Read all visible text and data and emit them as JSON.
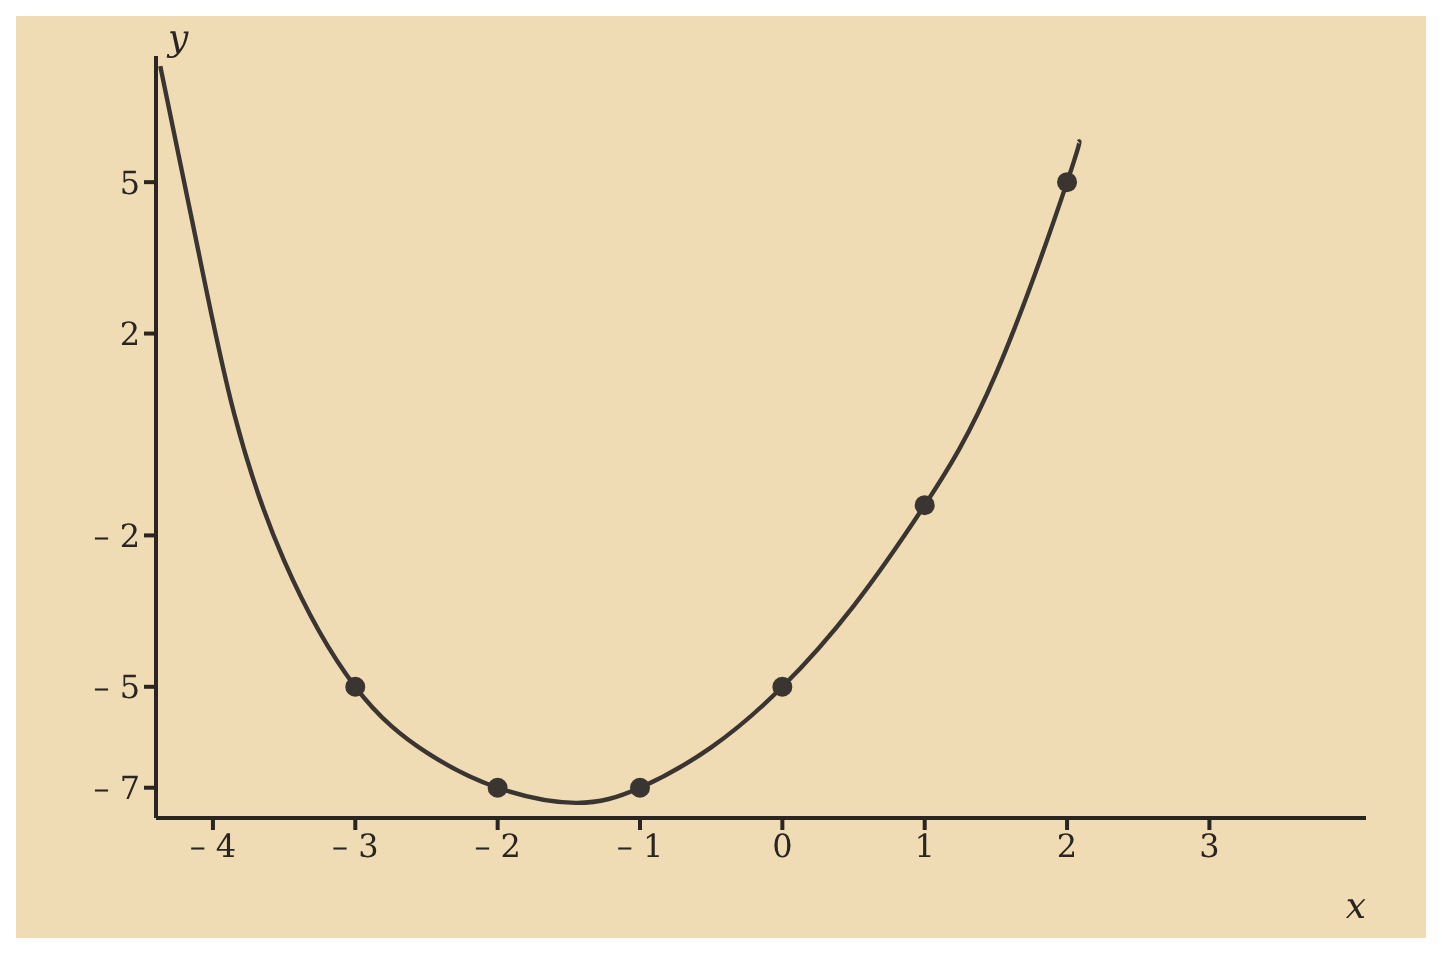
{
  "chart_data": {
    "type": "line",
    "xlabel": "x",
    "ylabel": "y",
    "xlim": [
      -4.4,
      4.1
    ],
    "ylim": [
      -7.6,
      7.5
    ],
    "xticks": [
      {
        "value": -4,
        "label": "– 4"
      },
      {
        "value": -3,
        "label": "– 3"
      },
      {
        "value": -2,
        "label": "– 2"
      },
      {
        "value": -1,
        "label": "– 1"
      },
      0,
      1,
      2,
      3
    ],
    "yticks": [
      {
        "value": -7,
        "label": "– 7"
      },
      {
        "value": -5,
        "label": "– 5"
      },
      {
        "value": -2,
        "label": "– 2"
      },
      2,
      5
    ],
    "grid": false,
    "series": [
      {
        "color": "#3a3530",
        "marker": "none",
        "x": [
          -4.37,
          -4.1,
          -3.85,
          -3.5,
          -3,
          -2.5,
          -2,
          -1.45,
          -1,
          -0.5,
          0,
          0.5,
          1,
          1.5,
          2,
          2.08
        ],
        "values": [
          7.3,
          3.6,
          0.4,
          -2.5,
          -5,
          -6.3,
          -7,
          -7.3,
          -7,
          -6.2,
          -5,
          -3.4,
          -1.4,
          1.2,
          5,
          5.8
        ]
      },
      {
        "type": "scatter",
        "color": "#3a3530",
        "marker": "circle",
        "x": [
          -3,
          -2,
          -1,
          0,
          1,
          2
        ],
        "values": [
          -5,
          -7,
          -7,
          -5,
          -1.4,
          5
        ]
      }
    ]
  }
}
